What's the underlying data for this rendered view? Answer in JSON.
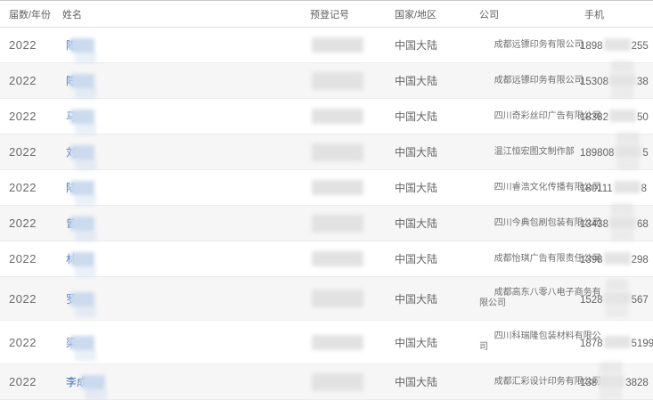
{
  "table": {
    "columns": {
      "year": "届数/年份",
      "name": "姓名",
      "reg": "预登记号",
      "region": "国家/地区",
      "company": "公司",
      "phone": "手机"
    },
    "rows": [
      {
        "year": "2022",
        "name_visible": "陈",
        "region": "中国大陆",
        "company": "成都远镖印务有限公司",
        "phone_prefix": "1898",
        "phone_suffix": "255"
      },
      {
        "year": "2022",
        "name_visible": "陈",
        "region": "中国大陆",
        "company": "成都远镖印务有限公司",
        "phone_prefix": "15308",
        "phone_suffix": "38"
      },
      {
        "year": "2022",
        "name_visible": "马",
        "region": "中国大陆",
        "company": "四川奇彩丝印广告有限公司",
        "phone_prefix": "18382",
        "phone_suffix": "50"
      },
      {
        "year": "2022",
        "name_visible": "刘",
        "region": "中国大陆",
        "company": "温江恒宏图文制作部",
        "phone_prefix": "189808",
        "phone_suffix": "5"
      },
      {
        "year": "2022",
        "name_visible": "陆",
        "region": "中国大陆",
        "company": "四川睿浩文化传播有限公司",
        "phone_prefix": "180111",
        "phone_suffix": "8"
      },
      {
        "year": "2022",
        "name_visible": "曾",
        "region": "中国大陆",
        "company": "四川今典包刷包装有限公司",
        "phone_prefix": "13438",
        "phone_suffix": "68"
      },
      {
        "year": "2022",
        "name_visible": "林",
        "region": "中国大陆",
        "company": "成都怡琪广告有限责任公司",
        "phone_prefix": "1398",
        "phone_suffix": "298"
      },
      {
        "year": "2022",
        "name_visible": "罗",
        "region": "中国大陆",
        "company": "成都高东八零八电子商务有\n限公司",
        "phone_prefix": "1528",
        "phone_suffix": "567"
      },
      {
        "year": "2022",
        "name_visible": "梁",
        "region": "中国大陆",
        "company": "四川科瑞隆包装材料有限公\n司",
        "phone_prefix": "1878",
        "phone_suffix": "5199"
      },
      {
        "year": "2022",
        "name_visible": "李成",
        "region": "中国大陆",
        "company": "成都汇彩设计印务有限公司",
        "phone_prefix": "138",
        "phone_suffix": "3828"
      }
    ]
  },
  "colors": {
    "link_blue": "#3f6fba",
    "row_alt_bg": "#f6f6f7",
    "text_gray": "#666666",
    "redact_name_blue": "#cbdaee",
    "redact_gray": "#e2e2e2"
  }
}
